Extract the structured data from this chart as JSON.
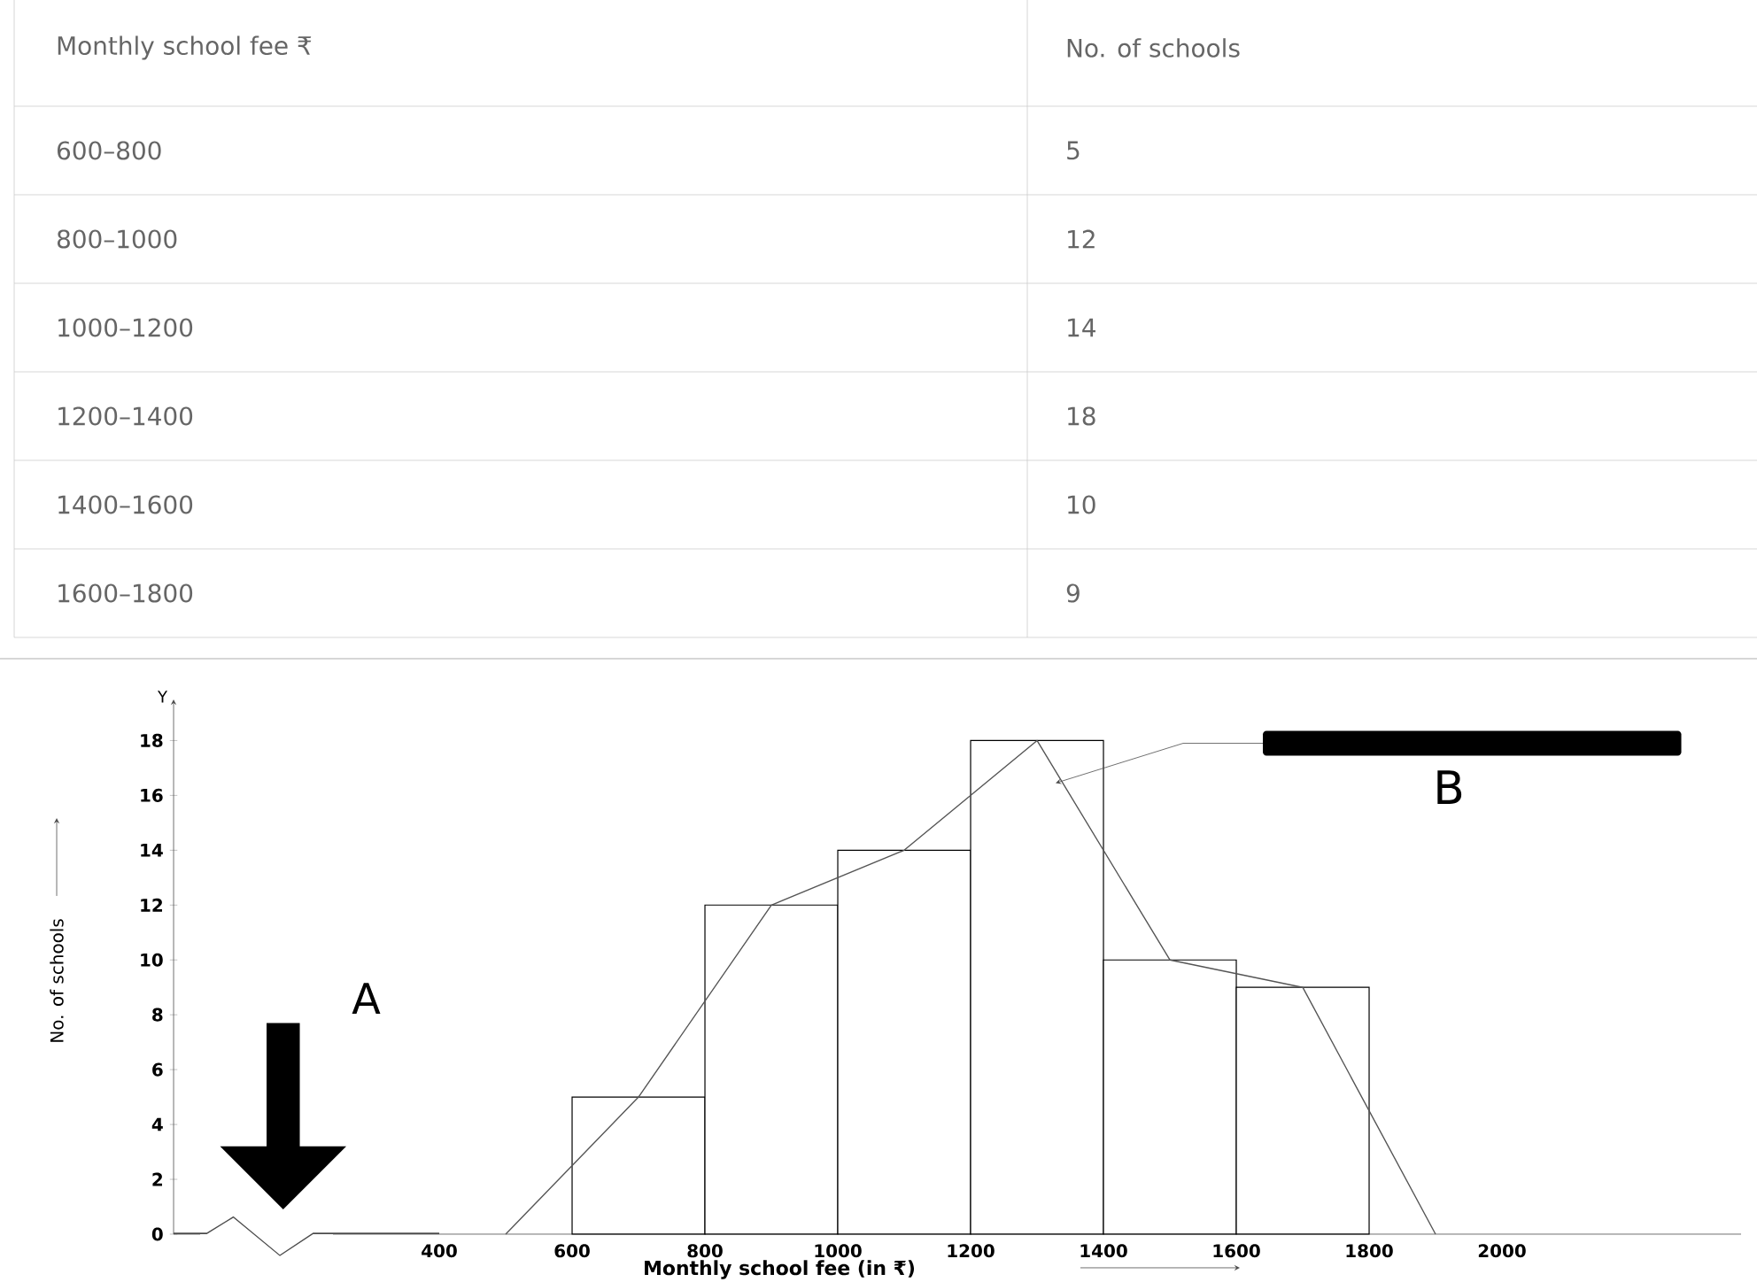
{
  "chart_data": {
    "type": "histogram",
    "bins": [
      600,
      800,
      1000,
      1200,
      1400,
      1600,
      1800
    ],
    "values": [
      5,
      12,
      14,
      18,
      10,
      9
    ],
    "color": "#000000",
    "series": [
      {
        "type": "line",
        "x": [
          500,
          700,
          900,
          1100,
          1300,
          1500,
          1700,
          1900
        ],
        "values": [
          0,
          5,
          12,
          14,
          18,
          10,
          9,
          0
        ],
        "color": "#555555"
      }
    ],
    "xlabel": "Monthly school fee (in ₹)",
    "ylabel": "No. of schools",
    "xlim": [
      0,
      2360
    ],
    "xticks": [
      400,
      600,
      800,
      1000,
      1200,
      1400,
      1600,
      1800,
      2000
    ],
    "ylim": [
      0,
      19.5
    ],
    "yticks": [
      0,
      2,
      4,
      6,
      8,
      10,
      12,
      14,
      16,
      18
    ],
    "grid": false,
    "annotations": [
      "Monthly school fee ₹",
      "No. of schools",
      "600–800",
      "5",
      "800–1000",
      "12",
      "1000–1200",
      "14",
      "1200–1400",
      "18",
      "1400–1600",
      "10",
      "1600–1800",
      "9",
      "Y",
      "A",
      "B"
    ]
  }
}
